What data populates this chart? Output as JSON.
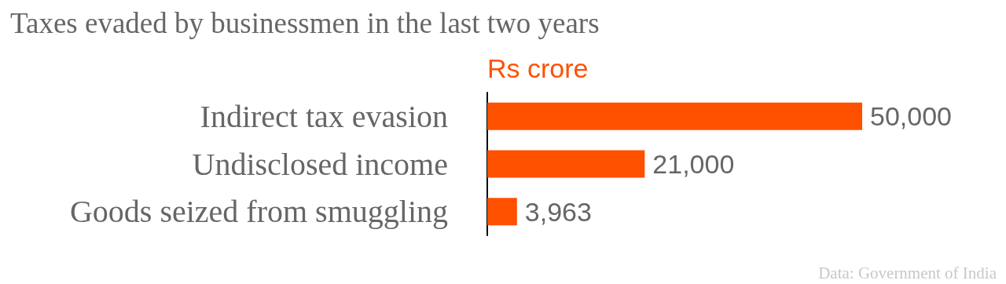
{
  "chart_data": {
    "type": "bar",
    "orientation": "horizontal",
    "title": "Taxes evaded by businessmen in the last two years",
    "xlabel": "Rs crore",
    "categories": [
      "Indirect tax evasion",
      "Undisclosed income",
      "Goods seized from smuggling"
    ],
    "values": [
      50000,
      21000,
      3963
    ],
    "value_labels": [
      "50,000",
      "21,000",
      "3,963"
    ],
    "color": "#ff5000",
    "annotations": [
      "Data: Government of India"
    ]
  }
}
